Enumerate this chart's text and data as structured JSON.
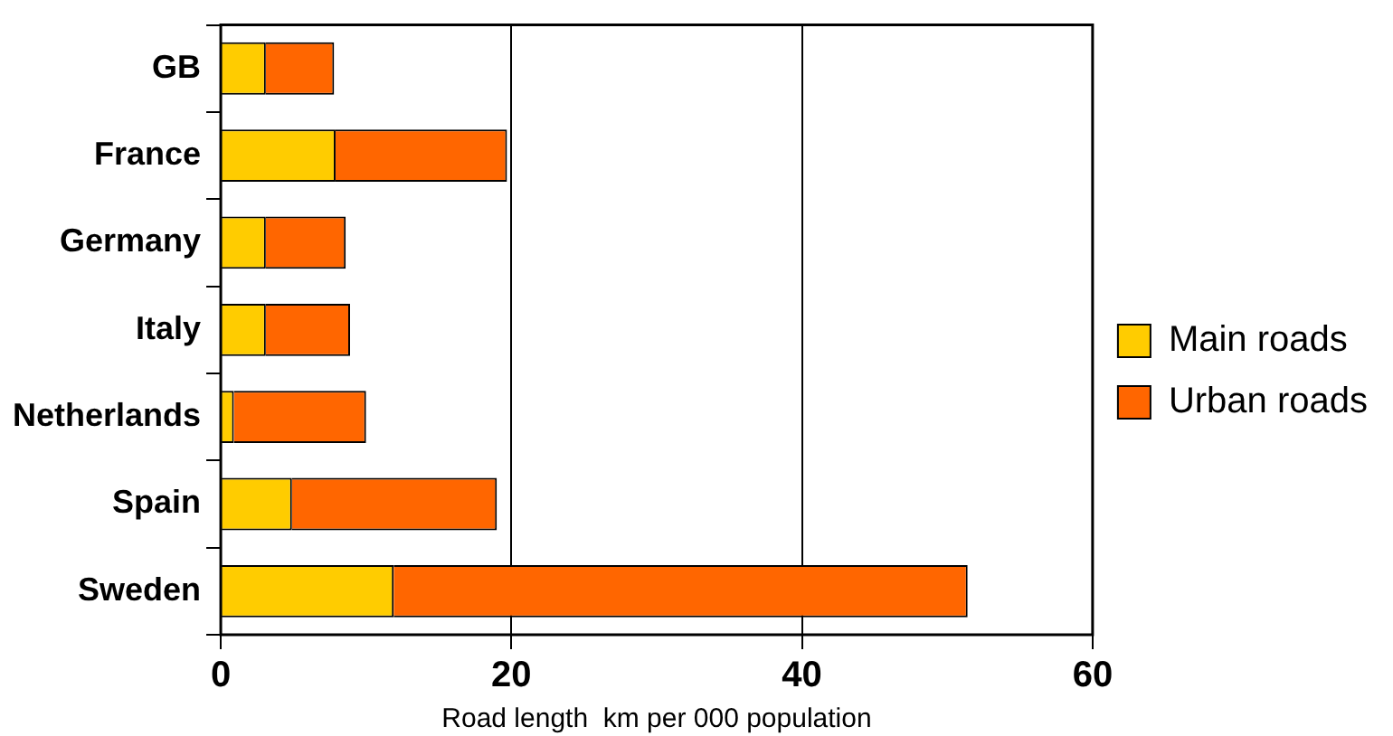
{
  "chart_data": {
    "type": "bar",
    "orientation": "horizontal",
    "stacked": true,
    "xlabel": "Road length  km per 000 population",
    "categories": [
      "GB",
      "France",
      "Germany",
      "Italy",
      "Netherlands",
      "Spain",
      "Sweden"
    ],
    "series": [
      {
        "name": "Main roads",
        "color": "#ffcc00",
        "values": [
          3.1,
          7.9,
          3.1,
          3.1,
          0.9,
          4.9,
          11.9
        ]
      },
      {
        "name": "Urban roads",
        "color": "#ff6600",
        "values": [
          4.7,
          11.8,
          5.5,
          5.8,
          9.1,
          14.1,
          39.5
        ]
      }
    ],
    "xlim": [
      0,
      60
    ],
    "xticks": [
      0,
      20,
      40,
      60
    ],
    "grid": "x",
    "legend": "right"
  }
}
